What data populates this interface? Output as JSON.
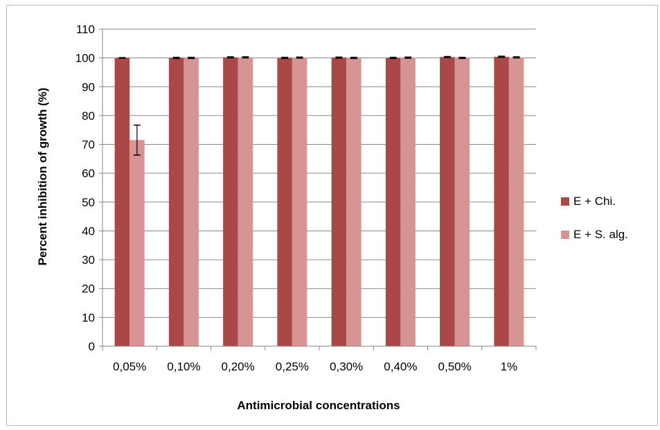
{
  "chart_data": {
    "type": "bar",
    "title": "",
    "xlabel": "Antimicrobial concentrations",
    "ylabel": "Percent inhibition of growth (%)",
    "categories": [
      "0,05%",
      "0,10%",
      "0,20%",
      "0,25%",
      "0,30%",
      "0,40%",
      "0,50%",
      "1%"
    ],
    "series": [
      {
        "name": "E + Chi.",
        "color": "#a94846",
        "values": [
          100,
          100,
          100.2,
          100,
          100.1,
          100,
          100.3,
          100.4
        ],
        "errors": [
          0.1,
          0.2,
          0.2,
          0.2,
          0.2,
          0.2,
          0.2,
          0.2
        ]
      },
      {
        "name": "E + S. alg.",
        "color": "#d69594",
        "values": [
          71.5,
          100,
          100.2,
          100.1,
          100,
          100.1,
          100,
          100.2
        ],
        "errors": [
          5.2,
          0.2,
          0.2,
          0.2,
          0.2,
          0.2,
          0.2,
          0.2
        ]
      }
    ],
    "ylim": [
      0,
      110
    ],
    "yticks": [
      0,
      10,
      20,
      30,
      40,
      50,
      60,
      70,
      80,
      90,
      100,
      110
    ],
    "grid": true,
    "legend_position": "right"
  }
}
